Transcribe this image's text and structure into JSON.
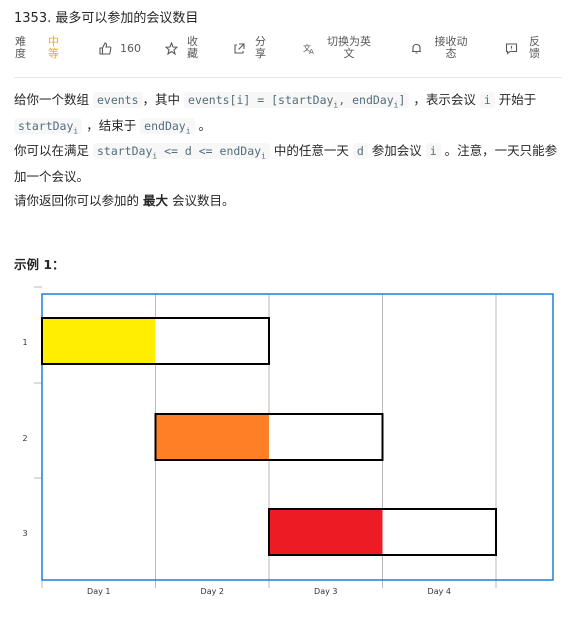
{
  "problem": {
    "title": "1353. 最多可以参加的会议数目"
  },
  "meta": {
    "difficulty_label": "难度",
    "difficulty_value": "中等",
    "likes": "160",
    "favorite": "收藏",
    "share": "分享",
    "translate": "切换为英文",
    "follow": "接收动态",
    "feedback": "反馈"
  },
  "description": {
    "p1": {
      "t1": "给你一个数组 ",
      "c1": "events",
      "t2": "，其中 ",
      "c2a": "events[i] = [startDay",
      "c2s1": "i",
      "c2b": ", endDay",
      "c2s2": "i",
      "c2c": "]",
      "t3": " ，表示会议 ",
      "c3": "i",
      "t4": " 开始于 ",
      "c4a": "startDay",
      "c4s": "i",
      "t5": " ，结束于 ",
      "c5a": "endDay",
      "c5s": "i",
      "t6": " 。"
    },
    "p2": {
      "t1": "你可以在满足 ",
      "c1a": "startDay",
      "c1s": "i",
      "c1b": " <= d <= endDay",
      "c1s2": "i",
      "t2": " 中的任意一天 ",
      "c2": "d",
      "t3": " 参加会议 ",
      "c3": "i",
      "t4": " 。注意，一天只能参加一个会议。"
    },
    "p3": {
      "t1": "请你返回你可以参加的 ",
      "bold": "最大",
      "t2": " 会议数目。"
    }
  },
  "example": {
    "heading": "示例 1："
  },
  "chart_data": {
    "type": "bar",
    "categories": [
      "1",
      "2",
      "3"
    ],
    "x_ticks": [
      "Day 1",
      "Day 2",
      "Day 3",
      "Day 4"
    ],
    "series": [
      {
        "meeting": "1",
        "start": 1,
        "end": 2,
        "attended_day": 1,
        "color": "#ffee00"
      },
      {
        "meeting": "2",
        "start": 2,
        "end": 3,
        "attended_day": 2,
        "color": "#ff7f27"
      },
      {
        "meeting": "3",
        "start": 3,
        "end": 4,
        "attended_day": 3,
        "color": "#ed1c24"
      }
    ],
    "colors": {
      "frame": "#1e7fd6",
      "grid": "#b9b9b9",
      "bar_border": "#000000"
    },
    "grid": true
  }
}
